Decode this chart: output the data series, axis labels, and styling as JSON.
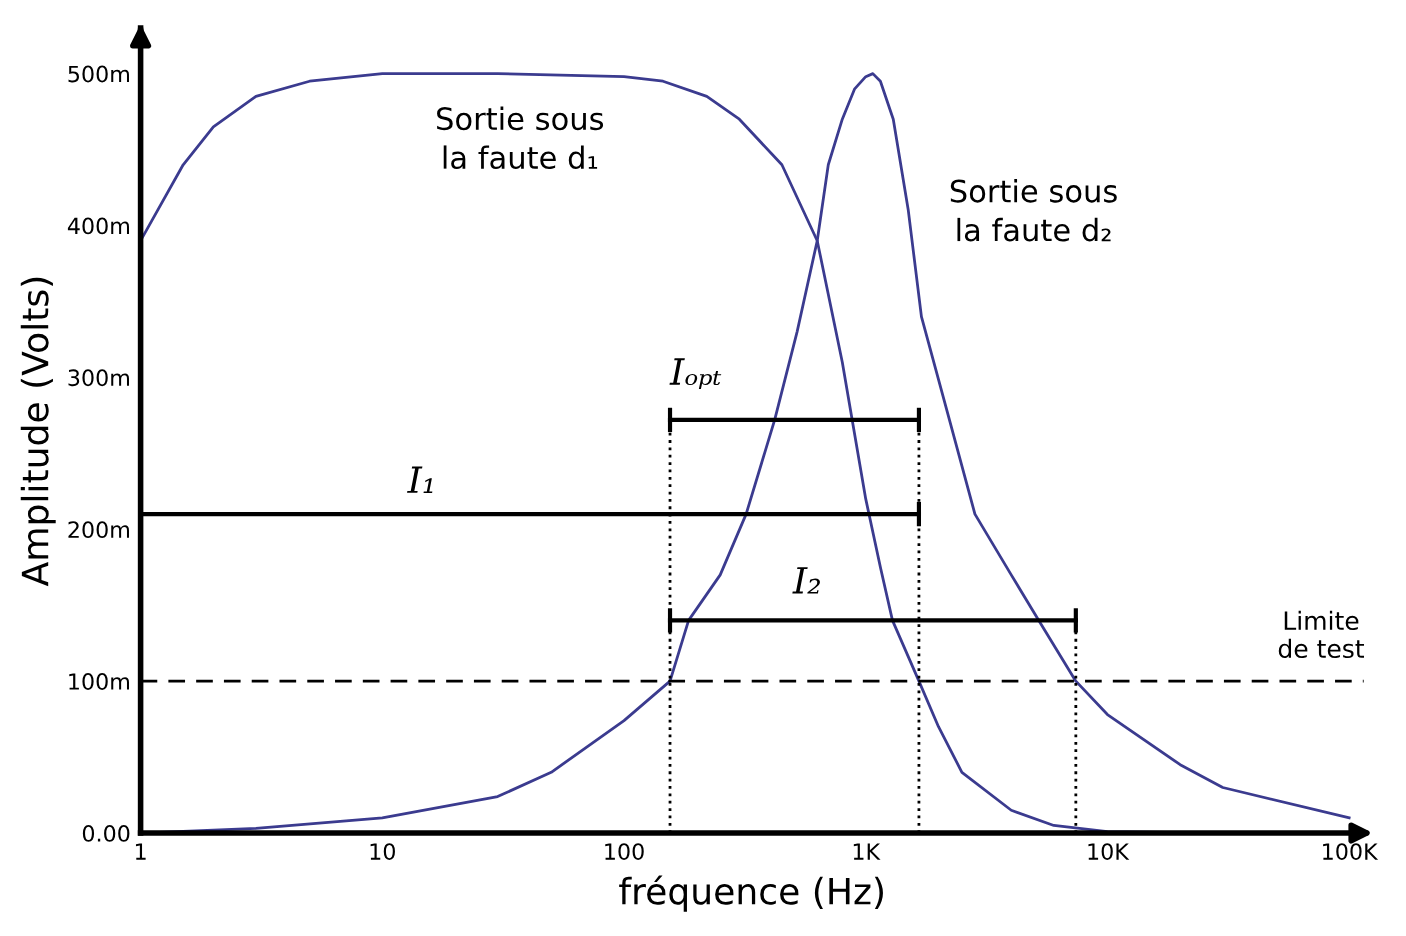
{
  "chart_data": {
    "type": "line",
    "xlabel": "fréquence (Hz)",
    "ylabel": "Amplitude (Volts)",
    "log": "x",
    "grid": false,
    "xlim": [
      1,
      115000
    ],
    "ylim": [
      0,
      530
    ],
    "xticks": [
      1,
      10,
      100,
      {
        "value": 1000,
        "label": "1K"
      },
      {
        "value": 10000,
        "label": "10K"
      },
      {
        "value": 100000,
        "label": "100K"
      }
    ],
    "yticks": [
      {
        "value": 0,
        "label": "0.00"
      },
      {
        "value": 100,
        "label": "100m"
      },
      {
        "value": 200,
        "label": "200m"
      },
      {
        "value": 300,
        "label": "300m"
      },
      {
        "value": 400,
        "label": "400m"
      },
      {
        "value": 500,
        "label": "500m"
      }
    ],
    "series": [
      {
        "color": "#3b3b8f",
        "line_style": "solid",
        "x": [
          1,
          1.5,
          2,
          3,
          5,
          10,
          30,
          100,
          145,
          220,
          300,
          450,
          630,
          800,
          1000,
          1150,
          1290,
          1660,
          2000,
          2500,
          4000,
          6000,
          10000,
          30000
        ],
        "values": [
          390,
          440,
          465,
          485,
          495,
          500,
          500,
          498,
          495,
          485,
          470,
          440,
          390,
          310,
          220,
          175,
          140,
          100,
          70,
          40,
          15,
          5,
          1,
          0
        ]
      },
      {
        "color": "#3b3b8f",
        "line_style": "solid",
        "x": [
          1,
          3,
          10,
          30,
          50,
          100,
          155,
          185,
          250,
          320,
          420,
          520,
          630,
          700,
          800,
          900,
          1000,
          1070,
          1150,
          1300,
          1500,
          1700,
          2220,
          2830,
          4000,
          5200,
          7400,
          10000,
          20000,
          30000,
          100000
        ],
        "values": [
          0,
          3,
          10,
          24,
          40,
          74,
          100,
          140,
          170,
          210,
          272,
          330,
          390,
          440,
          470,
          490,
          498,
          500,
          495,
          470,
          410,
          340,
          272,
          210,
          170,
          140,
          100,
          78,
          45,
          30,
          10
        ]
      },
      {
        "color": "#000000",
        "line_style": "solid",
        "x": [
          155,
          1660
        ],
        "values": [
          272,
          272
        ],
        "errors": [
          8,
          8
        ]
      },
      {
        "color": "#000000",
        "line_style": "solid",
        "x": [
          1,
          1660
        ],
        "values": [
          210,
          210
        ],
        "errors": [
          8,
          8
        ]
      },
      {
        "color": "#000000",
        "line_style": "solid",
        "x": [
          155,
          7400
        ],
        "values": [
          140,
          140
        ],
        "errors": [
          8,
          8
        ]
      }
    ],
    "ref_lines": [
      {
        "axis": "y",
        "value": 100,
        "label": "Limite\nde test",
        "color": "#000000",
        "line_style": "dashed"
      },
      {
        "axis": "x",
        "value": 155,
        "color": "#000000",
        "line_style": "dotted"
      },
      {
        "axis": "x",
        "value": 1660,
        "color": "#000000",
        "line_style": "dotted"
      },
      {
        "axis": "x",
        "value": 7400,
        "color": "#000000",
        "line_style": "dotted"
      }
    ],
    "annotations": [
      "Sortie sous\nla faute d₁",
      "Sortie sous\nla faute d₂",
      {
        "text": "Iₒₚₜ",
        "x": 155,
        "y": 272
      },
      "I₁",
      "I₂"
    ]
  }
}
